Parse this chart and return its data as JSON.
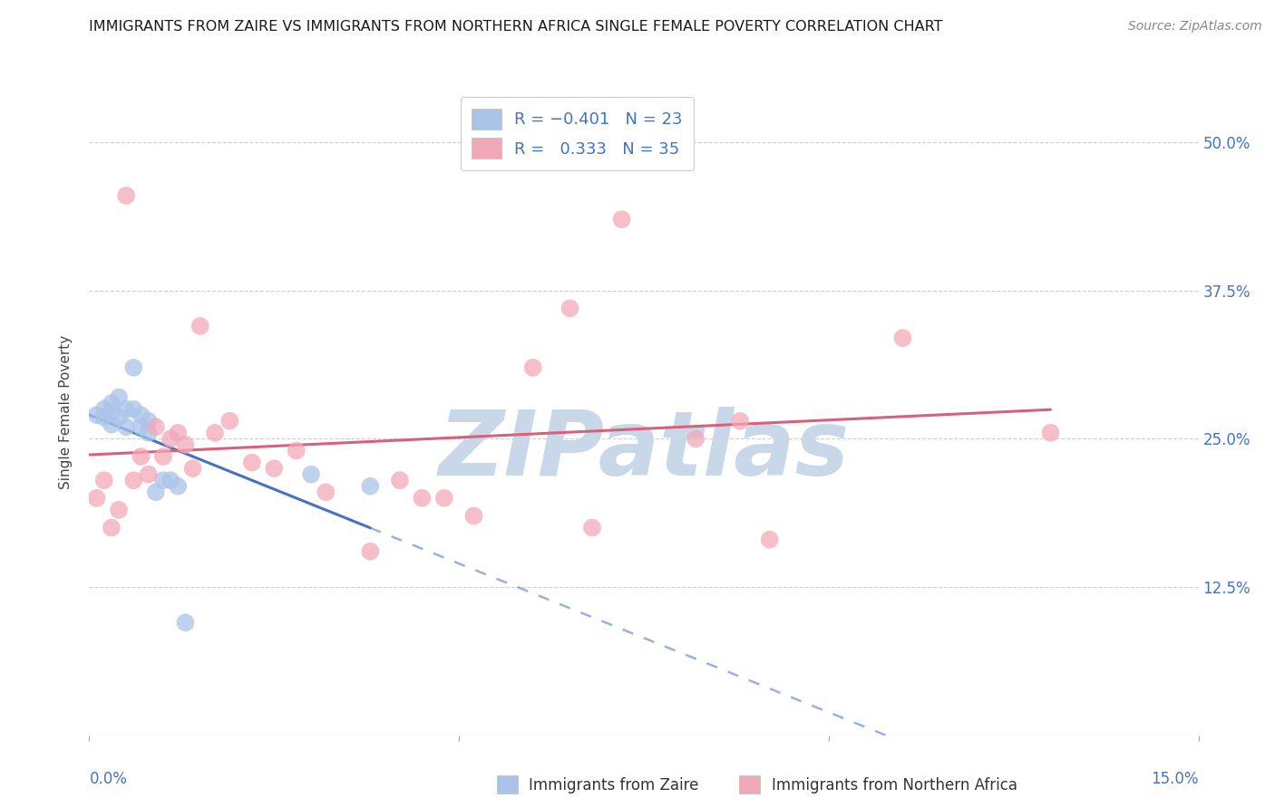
{
  "title": "IMMIGRANTS FROM ZAIRE VS IMMIGRANTS FROM NORTHERN AFRICA SINGLE FEMALE POVERTY CORRELATION CHART",
  "source": "Source: ZipAtlas.com",
  "ylabel": "Single Female Poverty",
  "ytick_labels": [
    "50.0%",
    "37.5%",
    "25.0%",
    "12.5%"
  ],
  "ytick_values": [
    0.5,
    0.375,
    0.25,
    0.125
  ],
  "xlim": [
    0.0,
    0.15
  ],
  "ylim": [
    0.0,
    0.545
  ],
  "background_color": "#ffffff",
  "grid_color": "#d0d0d0",
  "watermark_text": "ZIPatlas",
  "watermark_color": "#c8d8e8",
  "zaire_color": "#aac4e8",
  "northern_africa_color": "#f2a8b8",
  "zaire_line_color": "#4472c4",
  "northern_africa_line_color": "#d9607a",
  "zaire_x": [
    0.001,
    0.002,
    0.002,
    0.003,
    0.003,
    0.003,
    0.004,
    0.004,
    0.005,
    0.005,
    0.006,
    0.006,
    0.007,
    0.007,
    0.008,
    0.008,
    0.009,
    0.01,
    0.011,
    0.012,
    0.013,
    0.03,
    0.038
  ],
  "zaire_y": [
    0.27,
    0.275,
    0.268,
    0.28,
    0.272,
    0.262,
    0.285,
    0.268,
    0.275,
    0.26,
    0.31,
    0.275,
    0.27,
    0.26,
    0.265,
    0.255,
    0.205,
    0.215,
    0.215,
    0.21,
    0.095,
    0.22,
    0.21
  ],
  "northern_africa_x": [
    0.001,
    0.002,
    0.003,
    0.004,
    0.005,
    0.006,
    0.007,
    0.008,
    0.009,
    0.01,
    0.011,
    0.012,
    0.013,
    0.014,
    0.015,
    0.017,
    0.019,
    0.022,
    0.025,
    0.028,
    0.032,
    0.038,
    0.042,
    0.045,
    0.048,
    0.052,
    0.06,
    0.065,
    0.068,
    0.072,
    0.082,
    0.088,
    0.092,
    0.11,
    0.13
  ],
  "northern_africa_y": [
    0.2,
    0.215,
    0.175,
    0.19,
    0.455,
    0.215,
    0.235,
    0.22,
    0.26,
    0.235,
    0.25,
    0.255,
    0.245,
    0.225,
    0.345,
    0.255,
    0.265,
    0.23,
    0.225,
    0.24,
    0.205,
    0.155,
    0.215,
    0.2,
    0.2,
    0.185,
    0.31,
    0.36,
    0.175,
    0.435,
    0.25,
    0.265,
    0.165,
    0.335,
    0.255
  ]
}
